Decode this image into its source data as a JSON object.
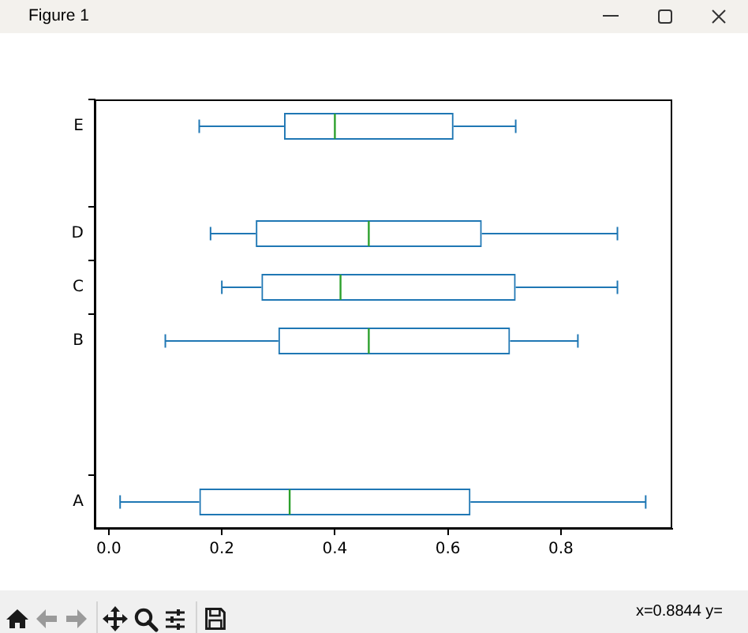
{
  "chart_data": {
    "type": "box",
    "orientation": "horizontal",
    "categories": [
      "E",
      null,
      "D",
      "C",
      "B",
      null,
      null,
      "A"
    ],
    "series": [
      {
        "color": "#1f77b4",
        "boxes": [
          {
            "low": 0.16,
            "q1": 0.31,
            "median": 0.4,
            "q3": 0.61,
            "high": 0.72
          },
          null,
          {
            "low": 0.18,
            "q1": 0.26,
            "median": 0.46,
            "q3": 0.66,
            "high": 0.9
          },
          {
            "low": 0.2,
            "q1": 0.27,
            "median": 0.41,
            "q3": 0.72,
            "high": 0.9
          },
          {
            "low": 0.1,
            "q1": 0.3,
            "median": 0.46,
            "q3": 0.71,
            "high": 0.83
          },
          null,
          null,
          {
            "low": 0.02,
            "q1": 0.16,
            "median": 0.32,
            "q3": 0.64,
            "high": 0.95
          }
        ]
      }
    ],
    "xlim": [
      -0.025,
      0.997
    ],
    "xticks": [
      {
        "value": 0,
        "label": "0.0"
      },
      0.2,
      0.4,
      0.6,
      0.8
    ],
    "grid": false,
    "annotations": [
      "Figure 1",
      "x=0.8844 y="
    ]
  }
}
